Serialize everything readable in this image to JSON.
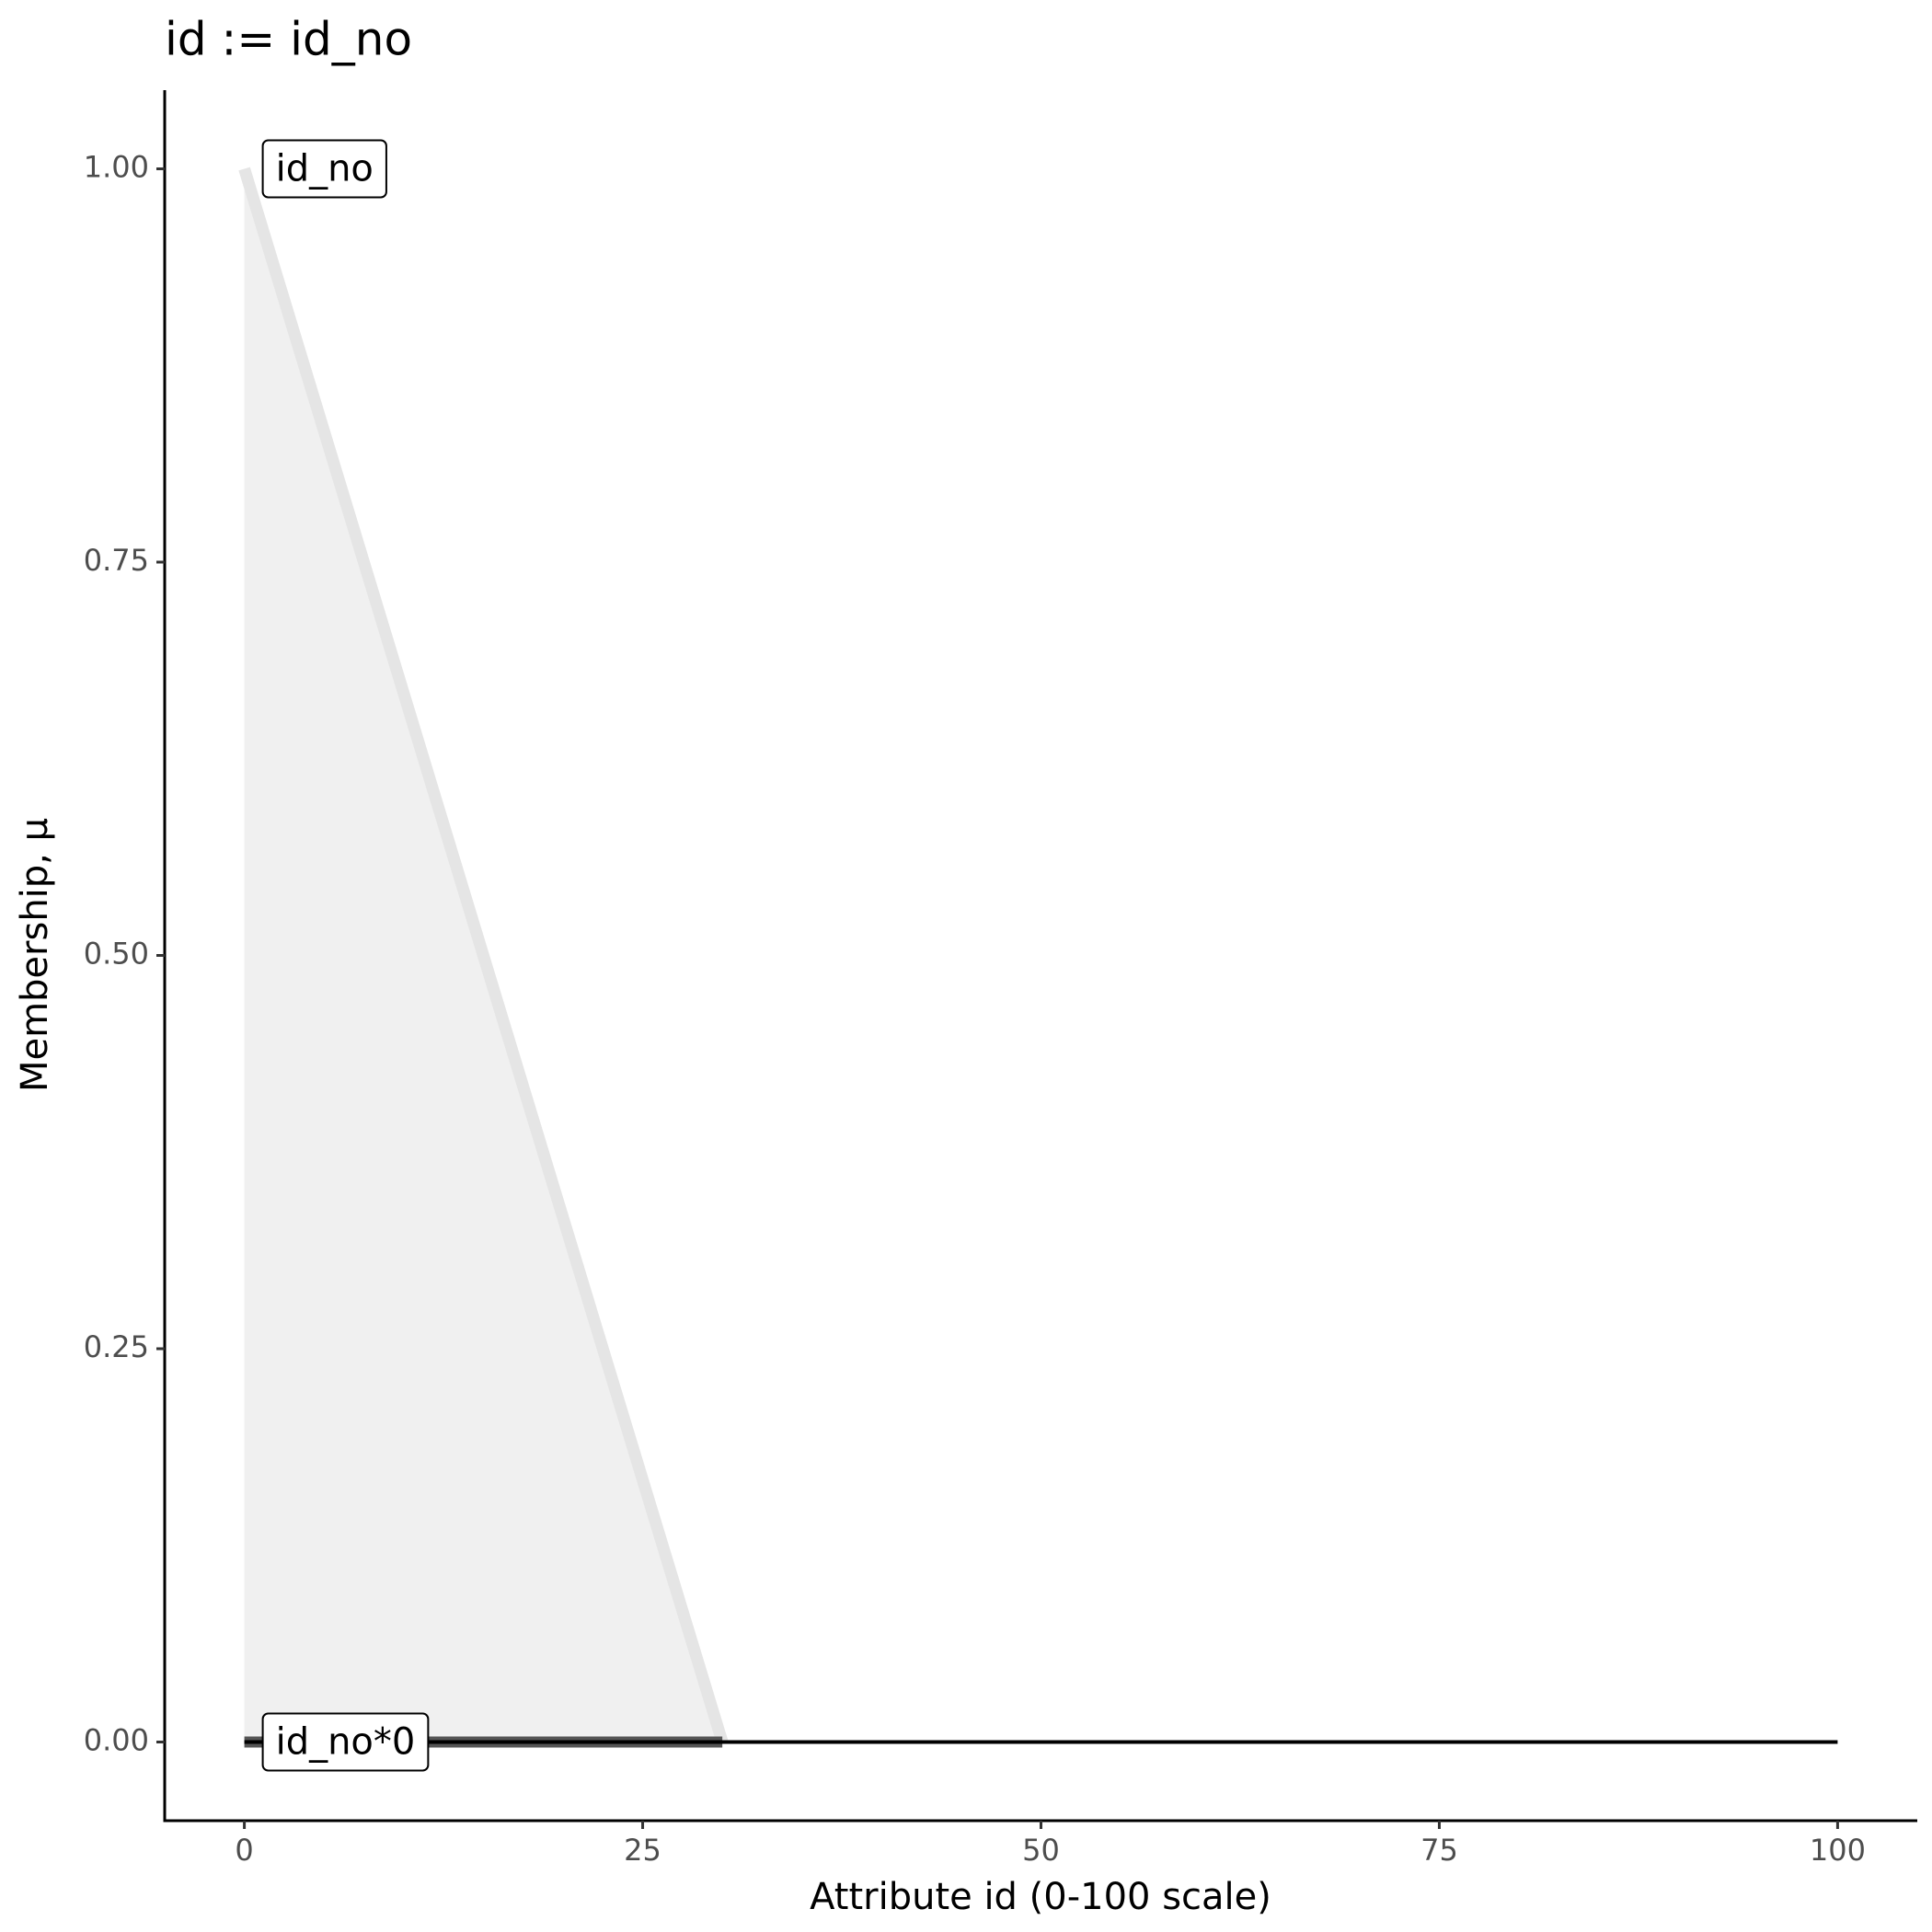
{
  "chart_data": {
    "type": "line",
    "title": "id := id_no",
    "x_label": "Attribute id (0-100 scale)",
    "y_label": "Membership, μ",
    "xlim": [
      -5,
      105
    ],
    "ylim": [
      -0.05,
      1.05
    ],
    "xticks": [
      0,
      25,
      50,
      75,
      100
    ],
    "yticks": [
      {
        "value": 0,
        "label": "0.00"
      },
      {
        "value": 0.25,
        "label": "0.25"
      },
      {
        "value": 0.5,
        "label": "0.50"
      },
      {
        "value": 0.75,
        "label": "0.75"
      },
      {
        "value": 1,
        "label": "1.00"
      }
    ],
    "grid": false,
    "series": [
      {
        "name": "id_no",
        "x": [
          0,
          30
        ],
        "values": [
          1,
          0
        ],
        "color": "#e5e5e5",
        "fill": "#f0f0f0"
      },
      {
        "name": "id_no*0",
        "x": [
          0,
          30
        ],
        "values": [
          0,
          0
        ],
        "color": "#555555"
      },
      {
        "x": [
          0,
          100
        ],
        "values": [
          0,
          0
        ],
        "color": "#000000"
      }
    ]
  }
}
